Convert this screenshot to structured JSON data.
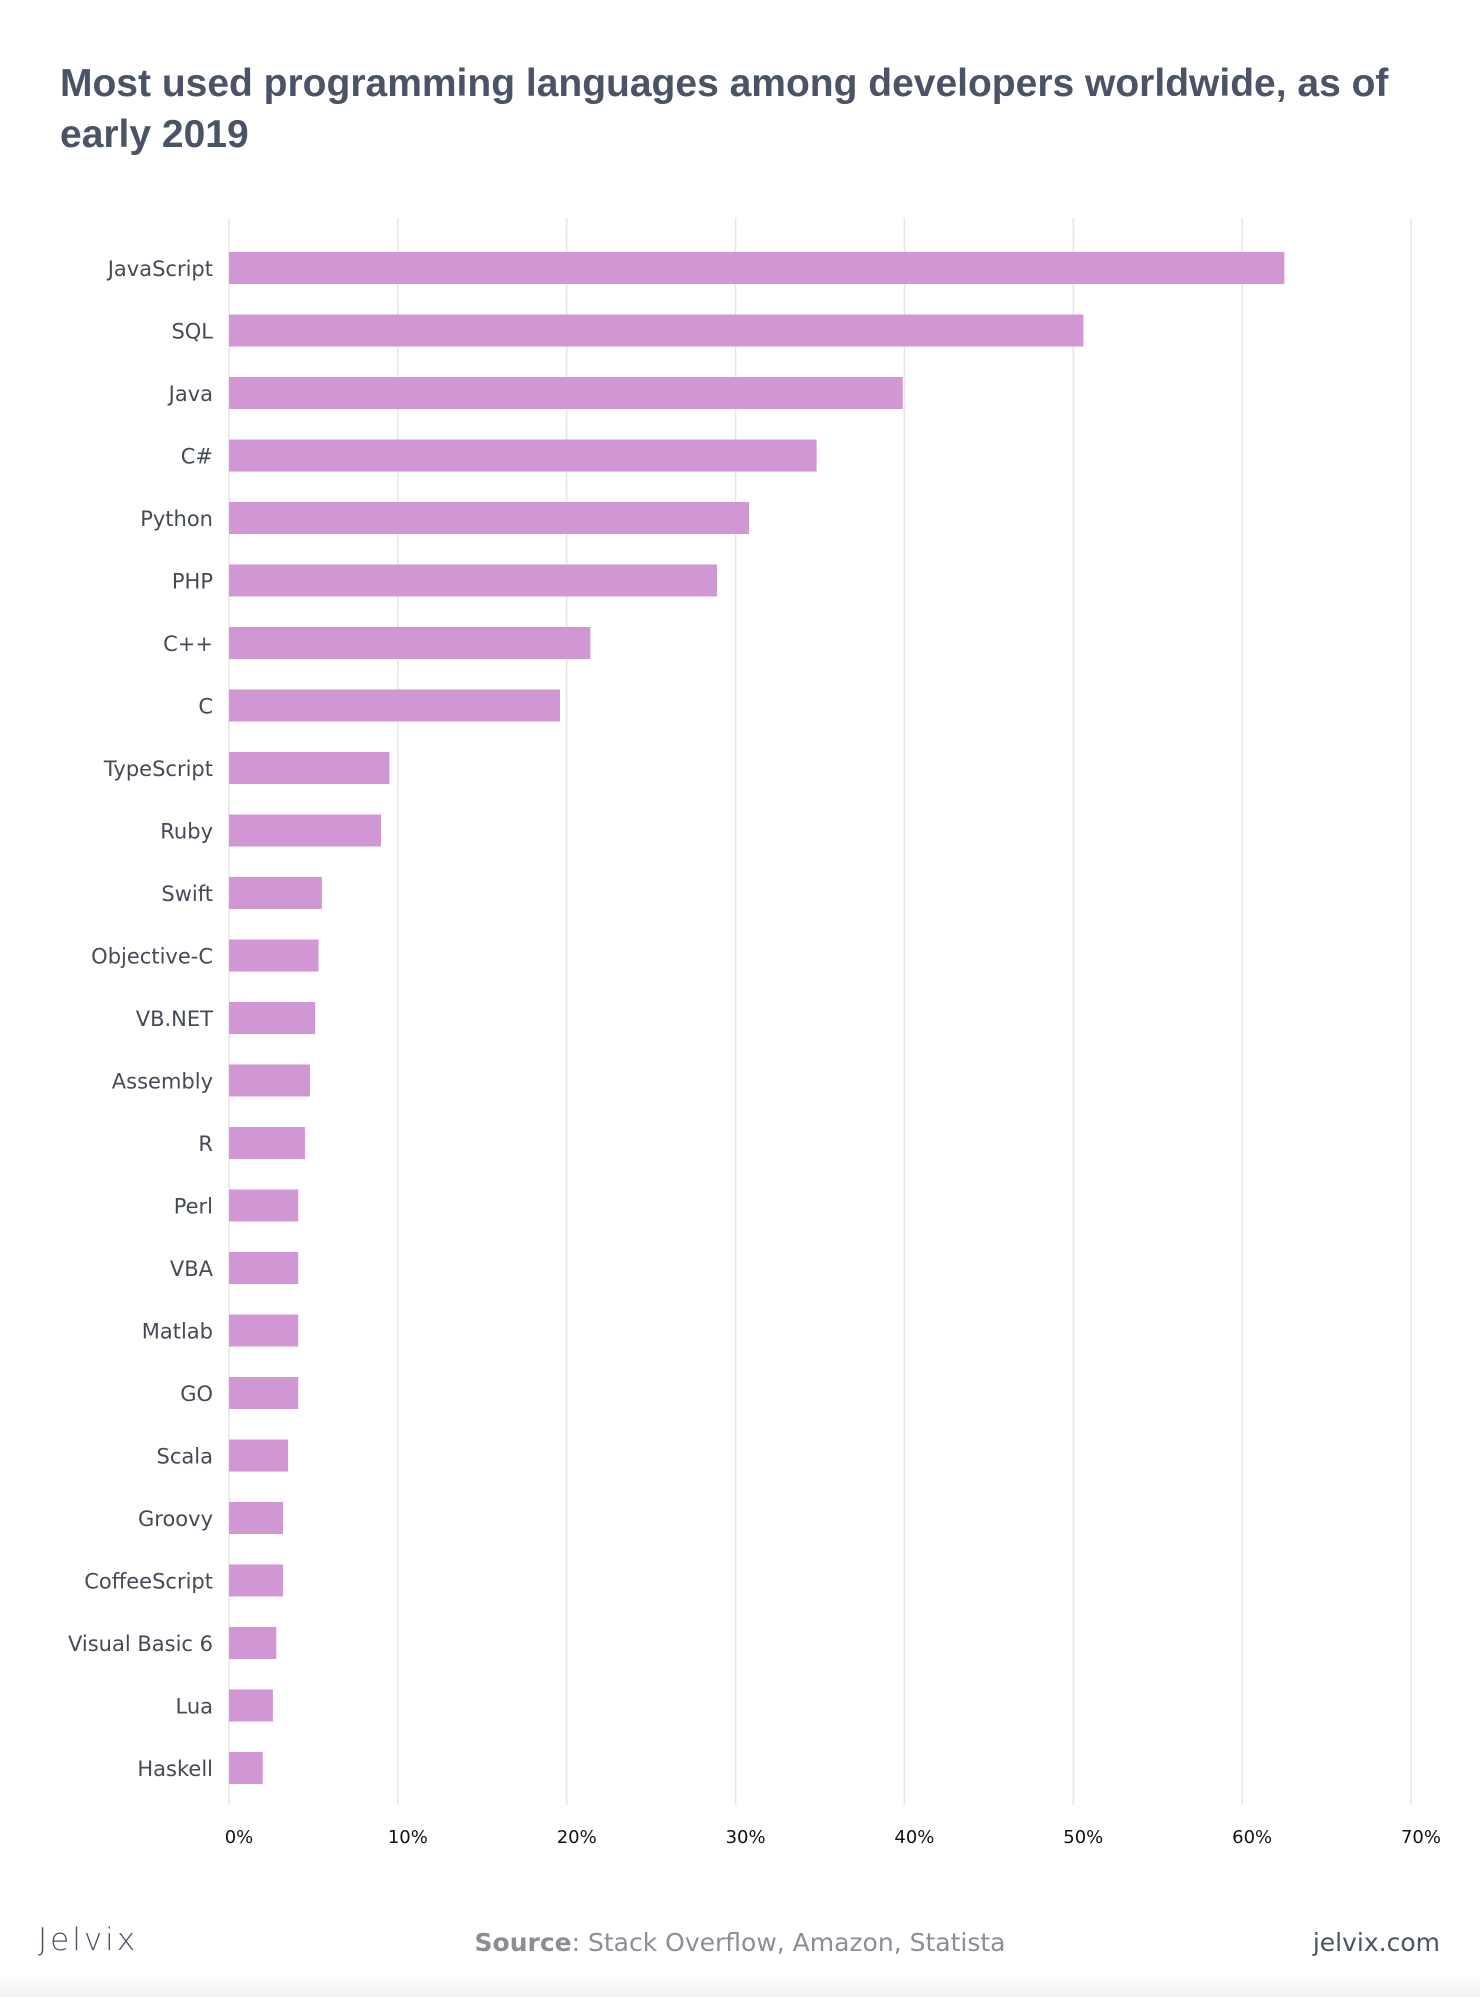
{
  "chart_data": {
    "type": "bar",
    "orientation": "horizontal",
    "title": "Most used programming languages among developers worldwide, as of early 2019",
    "categories": [
      "JavaScript",
      "SQL",
      "Java",
      "C#",
      "Python",
      "PHP",
      "C++",
      "C",
      "TypeScript",
      "Ruby",
      "Swift",
      "Objective-C",
      "VB.NET",
      "Assembly",
      "R",
      "Perl",
      "VBA",
      "Matlab",
      "GO",
      "Scala",
      "Groovy",
      "CoffeeScript",
      "Visual Basic 6",
      "Lua",
      "Haskell"
    ],
    "values": [
      62.5,
      50.6,
      39.9,
      34.8,
      30.8,
      28.9,
      21.4,
      19.6,
      9.5,
      9.0,
      5.5,
      5.3,
      5.1,
      4.8,
      4.5,
      4.1,
      4.1,
      4.1,
      4.1,
      3.5,
      3.2,
      3.2,
      2.8,
      2.6,
      2.0
    ],
    "ticks": [
      "0%",
      "10%",
      "20%",
      "30%",
      "40%",
      "50%",
      "60%",
      "70%"
    ],
    "xlim": [
      0,
      70
    ],
    "xlabel": "",
    "ylabel": "",
    "grid": true,
    "legend": "none",
    "bar_color": "#d196d4",
    "grid_color": "#e6e6e6"
  },
  "footer": {
    "logo": "Jelvix",
    "source_key": "Source",
    "source_text": ": Stack Overflow, Amazon, Statista",
    "url": "jelvix.com"
  }
}
